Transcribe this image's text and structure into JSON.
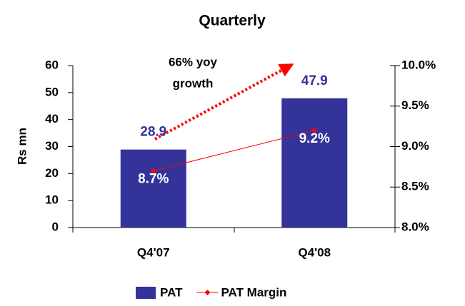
{
  "chart_data": {
    "type": "bar",
    "title": "Quarterly",
    "ylabel": "Rs mn",
    "categories": [
      "Q4'07",
      "Q4'08"
    ],
    "series": [
      {
        "name": "PAT",
        "type": "bar",
        "color": "#333399",
        "values": [
          28.9,
          47.9
        ]
      },
      {
        "name": "PAT Margin",
        "type": "line",
        "color": "#ff0000",
        "axis": "y2",
        "values": [
          8.7,
          9.2
        ],
        "value_labels": [
          "8.7%",
          "9.2%"
        ]
      }
    ],
    "ylim": [
      0,
      60
    ],
    "yticks": [
      0,
      10,
      20,
      30,
      40,
      50,
      60
    ],
    "y2lim": [
      8.0,
      10.0
    ],
    "y2ticks": [
      {
        "value": 8.0,
        "label": "8.0%"
      },
      {
        "value": 8.5,
        "label": "8.5%"
      },
      {
        "value": 9.0,
        "label": "9.0%"
      },
      {
        "value": 9.5,
        "label": "9.5%"
      },
      {
        "value": 10.0,
        "label": "10.0%"
      }
    ],
    "annotation": [
      "66% yoy",
      "growth"
    ],
    "legend": "bottom"
  }
}
